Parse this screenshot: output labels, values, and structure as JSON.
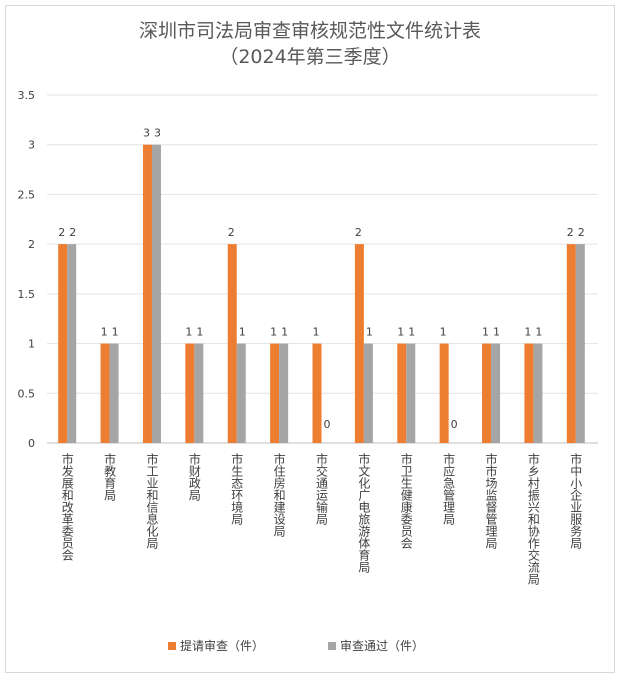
{
  "chart_data": {
    "type": "bar",
    "title": "深圳市司法局审查审核规范性文件统计表",
    "subtitle": "（2024年第三季度）",
    "categories": [
      "市发展和改革委员会",
      "市教育局",
      "市工业和信息化局",
      "市财政局",
      "市生态环境局",
      "市住房和建设局",
      "市交通运输局",
      "市文化广电旅游体育局",
      "市卫生健康委员会",
      "市应急管理局",
      "市市场监督管理局",
      "市乡村振兴和协作交流局",
      "市中小企业服务局"
    ],
    "series": [
      {
        "name": "提请审查（件）",
        "color": "#ed7d31",
        "values": [
          2,
          1,
          3,
          1,
          2,
          1,
          1,
          2,
          1,
          1,
          1,
          1,
          2
        ]
      },
      {
        "name": "审查通过（件）",
        "color": "#a5a5a5",
        "values": [
          2,
          1,
          3,
          1,
          1,
          1,
          0,
          1,
          1,
          0,
          1,
          1,
          2
        ]
      }
    ],
    "ylim": [
      0,
      3.5
    ],
    "yticks": [
      "0",
      "0.5",
      "1",
      "1.5",
      "2",
      "2.5",
      "3",
      "3.5"
    ],
    "grid": true,
    "legend_position": "bottom",
    "xlabel": "",
    "ylabel": ""
  }
}
